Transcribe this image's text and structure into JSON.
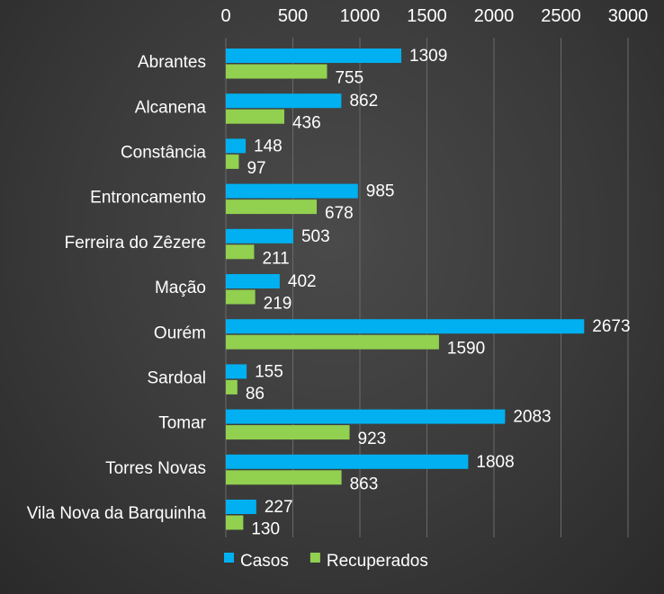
{
  "chart_data": {
    "type": "bar",
    "orientation": "horizontal",
    "categories": [
      "Abrantes",
      "Alcanena",
      "Constância",
      "Entroncamento",
      "Ferreira do Zêzere",
      "Mação",
      "Ourém",
      "Sardoal",
      "Tomar",
      "Torres Novas",
      "Vila Nova da Barquinha"
    ],
    "series": [
      {
        "name": "Casos",
        "color": "#00b0f0",
        "values": [
          1309,
          862,
          148,
          985,
          503,
          402,
          2673,
          155,
          2083,
          1808,
          227
        ]
      },
      {
        "name": "Recuperados",
        "color": "#92d050",
        "values": [
          755,
          436,
          97,
          678,
          211,
          219,
          1590,
          86,
          923,
          863,
          130
        ]
      }
    ],
    "xlim": [
      0,
      3000
    ],
    "xticks": [
      0,
      500,
      1000,
      1500,
      2000,
      2500,
      3000
    ],
    "x_axis_position": "top",
    "grid": true,
    "legend_position": "bottom",
    "data_labels": true
  }
}
